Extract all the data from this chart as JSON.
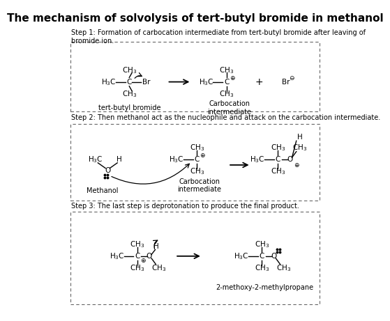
{
  "title": "The mechanism of solvolysis of tert-butyl bromide in methanol",
  "title_fontsize": 11,
  "bg_color": "#ffffff",
  "text_color": "#000000",
  "step1_text": "Step 1: Formation of carbocation intermediate from tert-butyl bromide after leaving of\nbromide ion.",
  "step2_text": "Step 2: Then methanol act as the nucleophile and attack on the carbocation intermediate.",
  "step3_text": "Step 3: The last step is deprotonation to produce the final product.",
  "label_tert_butyl": "tert-butyl bromide",
  "label_carbocation": "Carbocation\nintermediate",
  "label_methanol": "Methanol",
  "label_carbocation2": "Carbocation\nintermediate",
  "label_product": "2-methoxy-2-methylpropane"
}
